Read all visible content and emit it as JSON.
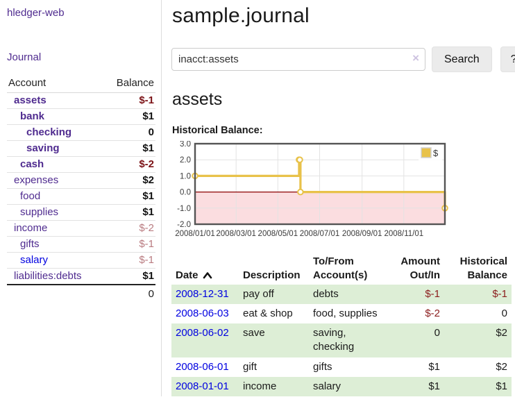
{
  "sidebar": {
    "app_title": "hledger-web",
    "journal_link": "Journal",
    "accounts_table": {
      "headers": {
        "account": "Account",
        "balance": "Balance"
      },
      "rows": [
        {
          "name": "assets",
          "depth": 1,
          "bold": true,
          "balance": "$-1"
        },
        {
          "name": "bank",
          "depth": 2,
          "bold": true,
          "balance": "$1"
        },
        {
          "name": "checking",
          "depth": 3,
          "bold": true,
          "balance": "0"
        },
        {
          "name": "saving",
          "depth": 3,
          "bold": true,
          "balance": "$1"
        },
        {
          "name": "cash",
          "depth": 2,
          "bold": true,
          "balance": "$-2"
        },
        {
          "name": "expenses",
          "depth": 1,
          "bold": false,
          "balance": "$2"
        },
        {
          "name": "food",
          "depth": 2,
          "bold": false,
          "balance": "$1"
        },
        {
          "name": "supplies",
          "depth": 2,
          "bold": false,
          "balance": "$1"
        },
        {
          "name": "income",
          "depth": 1,
          "bold": false,
          "balance": "$-2"
        },
        {
          "name": "gifts",
          "depth": 2,
          "bold": false,
          "balance": "$-1"
        },
        {
          "name": "salary",
          "depth": 2,
          "bold": false,
          "balance": "$-1",
          "blue": true
        },
        {
          "name": "liabilities:debts",
          "depth": 1,
          "bold": false,
          "balance": "$1"
        }
      ],
      "total": "0"
    }
  },
  "header": {
    "title": "sample.journal"
  },
  "search": {
    "value": "inacct:assets",
    "clear_label": "×",
    "button": "Search",
    "help_button": "?"
  },
  "account_view": {
    "heading": "assets",
    "chart_label": "Historical Balance:"
  },
  "chart_data": {
    "type": "line",
    "title": "Historical Balance",
    "step": true,
    "legend": [
      {
        "name": "$",
        "color": "#e8c24a"
      }
    ],
    "legend_position": "top-right",
    "y_ticks": [
      "3.0",
      "2.0",
      "1.0",
      "0.0",
      "-1.0",
      "-2.0"
    ],
    "ylim": [
      -2.0,
      3.0
    ],
    "x_ticks": [
      {
        "label": "2008/01/01",
        "day": 0
      },
      {
        "label": "2008/03/01",
        "day": 60
      },
      {
        "label": "2008/05/01",
        "day": 121
      },
      {
        "label": "2008/07/01",
        "day": 182
      },
      {
        "label": "2008/09/01",
        "day": 244
      },
      {
        "label": "2008/11/01",
        "day": 305
      }
    ],
    "x_range_days": 365,
    "points": [
      {
        "date": "2008-01-01",
        "day": 0,
        "value": 1
      },
      {
        "date": "2008-06-01",
        "day": 152,
        "value": 2
      },
      {
        "date": "2008-06-02",
        "day": 153,
        "value": 2
      },
      {
        "date": "2008-06-03",
        "day": 154,
        "value": 0
      },
      {
        "date": "2008-12-31",
        "day": 365,
        "value": -1
      }
    ],
    "grid": true,
    "series_color": "#e8c24a",
    "marker": "open-circle",
    "below_zero_fill": "#fbdde0",
    "zero_line_color": "#8b0000",
    "border_color": "#545454"
  },
  "transactions": {
    "columns": [
      "Date",
      "Description",
      "To/From Account(s)",
      "Amount Out/In",
      "Historical Balance"
    ],
    "sort": {
      "column": "Date",
      "direction": "ascending"
    },
    "rows": [
      {
        "date": "2008-12-31",
        "description": "pay off",
        "accounts": "debts",
        "amount": "$-1",
        "balance": "$-1"
      },
      {
        "date": "2008-06-03",
        "description": "eat & shop",
        "accounts": "food, supplies",
        "amount": "$-2",
        "balance": "0"
      },
      {
        "date": "2008-06-02",
        "description": "save",
        "accounts": "saving, checking",
        "amount": "0",
        "balance": "$2"
      },
      {
        "date": "2008-06-01",
        "description": "gift",
        "accounts": "gifts",
        "amount": "$1",
        "balance": "$2"
      },
      {
        "date": "2008-01-01",
        "description": "income",
        "accounts": "salary",
        "amount": "$1",
        "balance": "$1"
      }
    ]
  },
  "colors": {
    "link_purple": "#4f2b8f",
    "link_blue": "#0000e0",
    "negative_strong": "#7b1216",
    "negative_muted": "#b97b80",
    "row_stripe_green": "#ddeed6",
    "chart_gold": "#e8c24a",
    "chart_below_zero_pink": "#fbdde0"
  }
}
